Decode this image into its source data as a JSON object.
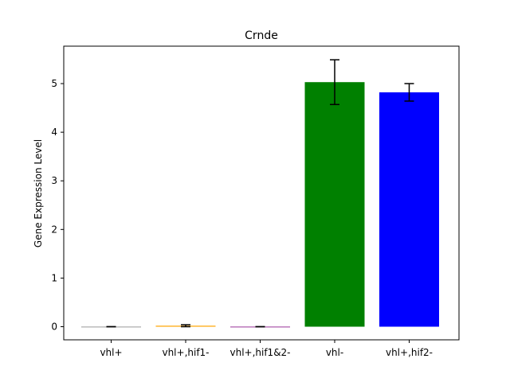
{
  "chart_data": {
    "type": "bar",
    "title": "Crnde",
    "xlabel": "",
    "ylabel": "Gene Expression Level",
    "categories": [
      "vhl+",
      "vhl+,hif1-",
      "vhl+,hif1&2-",
      "vhl-",
      "vhl+,hif2-"
    ],
    "values": [
      0.0,
      0.02,
      0.0,
      5.03,
      4.82
    ],
    "errors": [
      0.0,
      0.02,
      0.0,
      0.46,
      0.18
    ],
    "colors": [
      "#808080",
      "#ffa500",
      "#800080",
      "#008000",
      "#0000ff"
    ],
    "ylim": [
      -0.27,
      5.77
    ],
    "yticks": [
      0,
      1,
      2,
      3,
      4,
      5
    ],
    "grid": false
  }
}
